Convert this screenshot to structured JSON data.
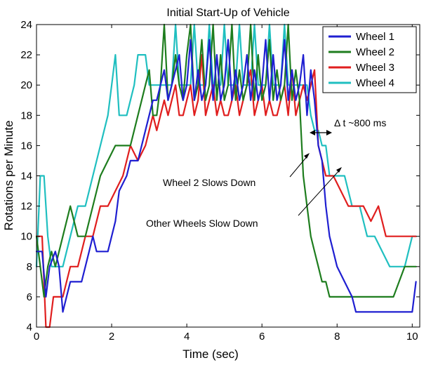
{
  "chart_data": {
    "type": "line",
    "title": "Initial Start-Up of Vehicle",
    "xlabel": "Time (sec)",
    "ylabel": "Rotations per Minute",
    "xlim": [
      0,
      10.2
    ],
    "ylim": [
      4,
      24
    ],
    "xticks": [
      0,
      2,
      4,
      6,
      8,
      10
    ],
    "yticks": [
      4,
      6,
      8,
      10,
      12,
      14,
      16,
      18,
      20,
      22,
      24
    ],
    "grid": false,
    "legend_position": "top-right",
    "series": [
      {
        "name": "Wheel 1",
        "color": "#1f1fd1",
        "x": [
          0,
          0.15,
          0.25,
          0.35,
          0.5,
          0.6,
          0.7,
          0.8,
          0.9,
          1.2,
          1.3,
          1.5,
          1.6,
          1.8,
          1.9,
          2.1,
          2.2,
          2.4,
          2.5,
          2.7,
          2.9,
          3.1,
          3.2,
          3.3,
          3.4,
          3.5,
          3.6,
          3.7,
          3.8,
          3.9,
          4.0,
          4.1,
          4.2,
          4.3,
          4.4,
          4.5,
          4.6,
          4.7,
          4.8,
          4.9,
          5.0,
          5.1,
          5.2,
          5.3,
          5.4,
          5.5,
          5.6,
          5.7,
          5.8,
          5.9,
          6.0,
          6.1,
          6.2,
          6.3,
          6.4,
          6.5,
          6.6,
          6.7,
          6.8,
          6.9,
          7.0,
          7.1,
          7.2,
          7.3,
          7.4,
          7.5,
          7.6,
          7.7,
          7.8,
          7.9,
          8.0,
          8.2,
          8.4,
          8.5,
          8.7,
          9.0,
          9.5,
          10.0,
          10.1
        ],
        "y": [
          9,
          9,
          6,
          8,
          9,
          8,
          5,
          6,
          7,
          7,
          8,
          10,
          9,
          9,
          9,
          11,
          13,
          14,
          15,
          15,
          17,
          19,
          19,
          20,
          21,
          19,
          20,
          21,
          22,
          19,
          20,
          23,
          19,
          21,
          19,
          20,
          23,
          19,
          22,
          19,
          20,
          23,
          19,
          21,
          19,
          20,
          22,
          19,
          21,
          19,
          20,
          23,
          19,
          22,
          19,
          20,
          23,
          19,
          21,
          19,
          20,
          22,
          18,
          21,
          19,
          16,
          15,
          12,
          10,
          9,
          8,
          7,
          6,
          5,
          5,
          5,
          5,
          5,
          7
        ]
      },
      {
        "name": "Wheel 2",
        "color": "#1e7d1e",
        "x": [
          0,
          0.1,
          0.2,
          0.3,
          0.4,
          0.5,
          0.7,
          0.9,
          1.1,
          1.3,
          1.5,
          1.7,
          1.9,
          2.1,
          2.3,
          2.5,
          2.7,
          2.9,
          3.0,
          3.1,
          3.2,
          3.3,
          3.4,
          3.5,
          3.6,
          3.7,
          3.8,
          3.9,
          4.0,
          4.1,
          4.2,
          4.3,
          4.4,
          4.5,
          4.6,
          4.7,
          4.8,
          4.9,
          5.0,
          5.1,
          5.2,
          5.3,
          5.4,
          5.5,
          5.6,
          5.7,
          5.8,
          5.9,
          6.0,
          6.1,
          6.2,
          6.3,
          6.4,
          6.5,
          6.6,
          6.7,
          6.8,
          6.9,
          7.0,
          7.1,
          7.2,
          7.3,
          7.4,
          7.5,
          7.6,
          7.7,
          7.8,
          8.0,
          8.3,
          8.6,
          9.0,
          9.5,
          9.8,
          10.0,
          10.1
        ],
        "y": [
          10,
          8,
          6,
          8,
          9,
          8,
          10,
          12,
          10,
          10,
          12,
          14,
          15,
          16,
          16,
          16,
          18,
          20,
          21,
          18,
          18,
          20,
          24,
          19,
          20,
          22,
          20,
          19,
          22,
          24,
          19,
          20,
          23,
          19,
          20,
          24,
          19,
          22,
          19,
          20,
          24,
          19,
          21,
          19,
          20,
          24,
          19,
          22,
          19,
          20,
          23,
          19,
          21,
          19,
          20,
          24,
          19,
          21,
          19,
          14,
          12,
          10,
          9,
          8,
          7,
          7,
          6,
          6,
          6,
          6,
          6,
          6,
          8,
          8,
          8
        ]
      },
      {
        "name": "Wheel 3",
        "color": "#e01e1e",
        "x": [
          0,
          0.15,
          0.25,
          0.35,
          0.45,
          0.55,
          0.7,
          0.9,
          1.1,
          1.3,
          1.5,
          1.7,
          1.9,
          2.1,
          2.3,
          2.5,
          2.7,
          2.9,
          3.0,
          3.1,
          3.2,
          3.3,
          3.4,
          3.5,
          3.6,
          3.7,
          3.8,
          3.9,
          4.0,
          4.1,
          4.2,
          4.3,
          4.4,
          4.5,
          4.6,
          4.7,
          4.8,
          4.9,
          5.0,
          5.1,
          5.2,
          5.3,
          5.4,
          5.5,
          5.6,
          5.7,
          5.8,
          5.9,
          6.0,
          6.1,
          6.2,
          6.3,
          6.4,
          6.5,
          6.6,
          6.7,
          6.8,
          6.9,
          7.0,
          7.1,
          7.2,
          7.3,
          7.4,
          7.5,
          7.6,
          7.7,
          7.8,
          7.9,
          8.1,
          8.3,
          8.5,
          8.7,
          8.9,
          9.1,
          9.3,
          9.5,
          9.7,
          10.1
        ],
        "y": [
          10,
          10,
          4,
          4,
          6,
          6,
          6,
          8,
          8,
          10,
          10,
          12,
          12,
          13,
          14,
          16,
          15,
          16,
          17,
          18,
          17,
          18,
          19,
          18,
          19,
          20,
          18,
          18,
          19,
          20,
          18,
          19,
          22,
          18,
          19,
          20,
          18,
          19,
          18,
          18,
          19,
          20,
          18,
          19,
          20,
          21,
          18,
          19,
          20,
          18,
          19,
          18,
          18,
          19,
          20,
          18,
          21,
          18,
          19,
          20,
          19,
          20,
          21,
          16,
          15,
          14,
          14,
          14,
          13,
          12,
          12,
          12,
          11,
          12,
          10,
          10,
          10,
          10
        ]
      },
      {
        "name": "Wheel 4",
        "color": "#20bfc0",
        "x": [
          0,
          0.1,
          0.2,
          0.3,
          0.4,
          0.5,
          0.7,
          0.9,
          1.1,
          1.3,
          1.5,
          1.7,
          1.9,
          2.0,
          2.1,
          2.2,
          2.4,
          2.6,
          2.7,
          2.9,
          3.0,
          3.1,
          3.2,
          3.3,
          3.4,
          3.5,
          3.6,
          3.7,
          3.8,
          3.9,
          4.0,
          4.1,
          4.2,
          4.3,
          4.4,
          4.5,
          4.6,
          4.7,
          4.8,
          4.9,
          5.0,
          5.1,
          5.2,
          5.3,
          5.4,
          5.5,
          5.6,
          5.7,
          5.8,
          5.9,
          6.0,
          6.1,
          6.2,
          6.3,
          6.4,
          6.5,
          6.6,
          6.7,
          6.8,
          6.9,
          7.0,
          7.1,
          7.2,
          7.3,
          7.4,
          7.5,
          7.6,
          7.7,
          7.8,
          8.0,
          8.2,
          8.4,
          8.6,
          8.8,
          9.0,
          9.2,
          9.4,
          9.6,
          9.8,
          10.0,
          10.1
        ],
        "y": [
          8,
          14,
          14,
          10,
          8,
          8,
          8,
          10,
          12,
          12,
          14,
          16,
          18,
          20,
          22,
          18,
          18,
          20,
          22,
          22,
          20,
          20,
          20,
          20,
          20,
          20,
          20,
          24,
          20,
          20,
          20,
          20,
          24,
          20,
          20,
          20,
          24,
          20,
          20,
          20,
          24,
          20,
          20,
          20,
          24,
          20,
          20,
          20,
          24,
          20,
          20,
          20,
          24,
          20,
          20,
          20,
          24,
          20,
          20,
          20,
          20,
          20,
          20,
          18,
          17,
          17,
          16,
          16,
          14,
          14,
          14,
          12,
          12,
          10,
          10,
          9,
          8,
          8,
          8,
          10,
          10
        ]
      }
    ],
    "annotations": [
      {
        "text": "Δ t ~800 ms"
      },
      {
        "text": "Wheel 2 Slows Down"
      },
      {
        "text": "Other Wheels Slow Down"
      }
    ]
  }
}
